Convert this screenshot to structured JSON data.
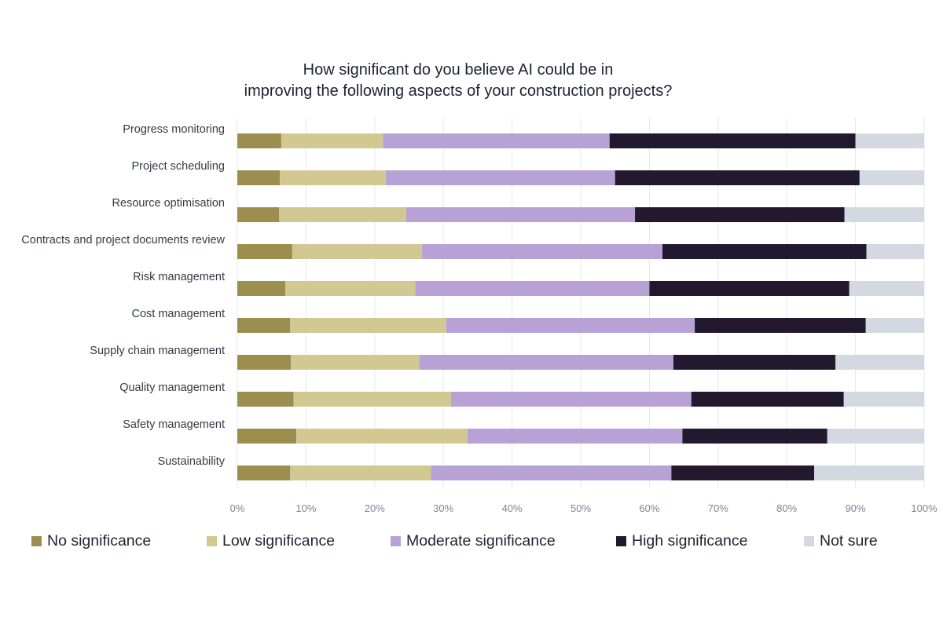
{
  "chart_data": {
    "type": "bar",
    "orientation": "horizontal",
    "stacked": true,
    "title": [
      "How significant do you believe AI could be in",
      "improving the following aspects of your construction projects?"
    ],
    "categories": [
      "Progress monitoring",
      "Project scheduling",
      "Resource optimisation",
      "Contracts and project documents review",
      "Risk management",
      "Cost management",
      "Supply chain management",
      "Quality management",
      "Safety management",
      "Sustainability"
    ],
    "series": [
      {
        "name": "No significance",
        "color": "#9c8e4e",
        "values": [
          6.4,
          6.2,
          6.1,
          8.0,
          7.0,
          7.7,
          7.8,
          8.2,
          8.6,
          7.7
        ]
      },
      {
        "name": "Low significance",
        "color": "#d2c992",
        "values": [
          14.8,
          15.4,
          18.5,
          18.9,
          18.9,
          22.7,
          18.7,
          22.9,
          24.9,
          20.5
        ]
      },
      {
        "name": "Moderate significance",
        "color": "#b8a1d5",
        "values": [
          33.0,
          33.4,
          33.3,
          35.0,
          34.1,
          36.2,
          37.0,
          35.0,
          31.3,
          35.0
        ]
      },
      {
        "name": "High significance",
        "color": "#23192f",
        "values": [
          35.8,
          35.6,
          30.5,
          29.7,
          29.1,
          24.9,
          23.6,
          22.2,
          21.1,
          20.8
        ]
      },
      {
        "name": "Not sure",
        "color": "#d4d8e1",
        "values": [
          10.0,
          9.4,
          11.6,
          8.4,
          10.9,
          8.5,
          12.9,
          11.7,
          14.1,
          16.0
        ]
      }
    ],
    "xlim": [
      0,
      100
    ],
    "x_ticks": [
      "0%",
      "10%",
      "20%",
      "30%",
      "40%",
      "50%",
      "60%",
      "70%",
      "80%",
      "90%",
      "100%"
    ],
    "grid": true,
    "legend_position": "bottom"
  }
}
